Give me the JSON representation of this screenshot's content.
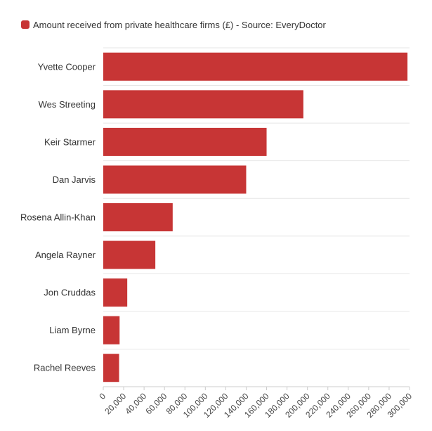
{
  "chart_data": {
    "type": "bar",
    "orientation": "horizontal",
    "categories": [
      "Yvette Cooper",
      "Wes Streeting",
      "Keir Starmer",
      "Dan Jarvis",
      "Rosena Allin-Khan",
      "Angela Rayner",
      "Jon Cruddas",
      "Liam Byrne",
      "Rachel Reeves"
    ],
    "series": [
      {
        "name": "Amount received from private healthcare firms (£) - Source: EveryDoctor",
        "color": "#c73535",
        "values": [
          298000,
          196000,
          160000,
          140000,
          68000,
          51000,
          23500,
          16000,
          15500
        ]
      }
    ],
    "xlim": [
      0,
      300000
    ],
    "xticks": [
      0,
      20000,
      40000,
      60000,
      80000,
      100000,
      120000,
      140000,
      160000,
      180000,
      200000,
      220000,
      240000,
      260000,
      280000,
      300000
    ],
    "xtick_labels": [
      "0",
      "20,000",
      "40,000",
      "60,000",
      "80,000",
      "100,000",
      "120,000",
      "140,000",
      "160,000",
      "180,000",
      "200,000",
      "220,000",
      "240,000",
      "260,000",
      "280,000",
      "300,000"
    ],
    "grid": true,
    "legend_position": "top-left"
  }
}
